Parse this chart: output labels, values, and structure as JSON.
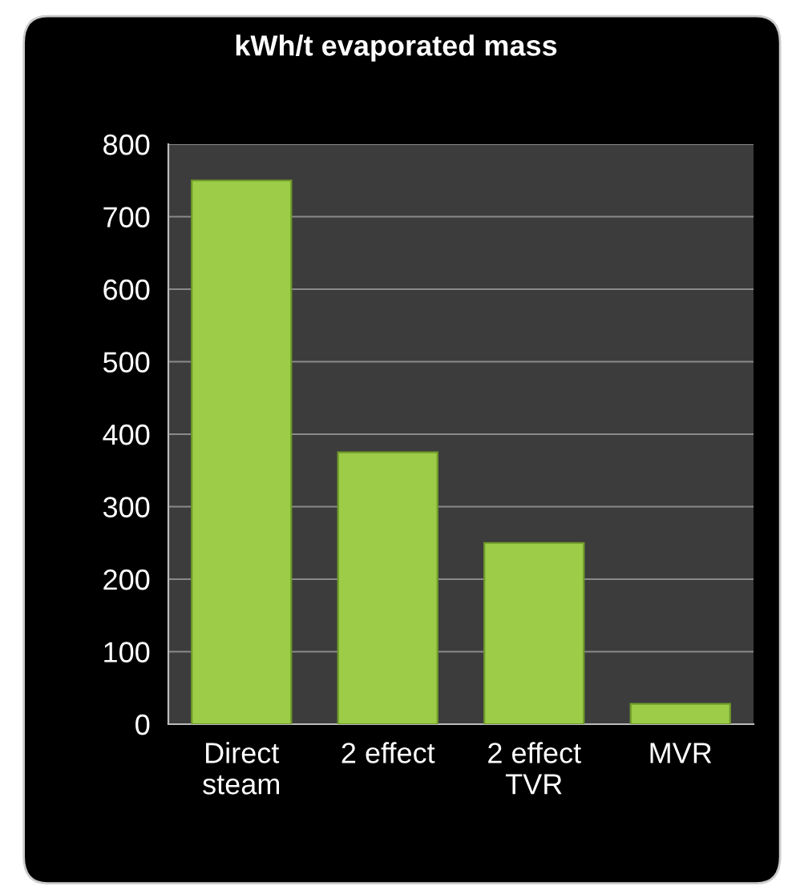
{
  "chart_data": {
    "type": "bar",
    "title": "kWh/t evaporated mass",
    "categories": [
      "Direct\nsteam",
      "2 effect",
      "2 effect\nTVR",
      "MVR"
    ],
    "values": [
      750,
      375,
      250,
      28
    ],
    "color": "#9ccc48",
    "ylim": [
      0,
      800
    ],
    "yticks": [
      0,
      100,
      200,
      300,
      400,
      500,
      600,
      700,
      800
    ],
    "grid": "y",
    "legend": false
  }
}
